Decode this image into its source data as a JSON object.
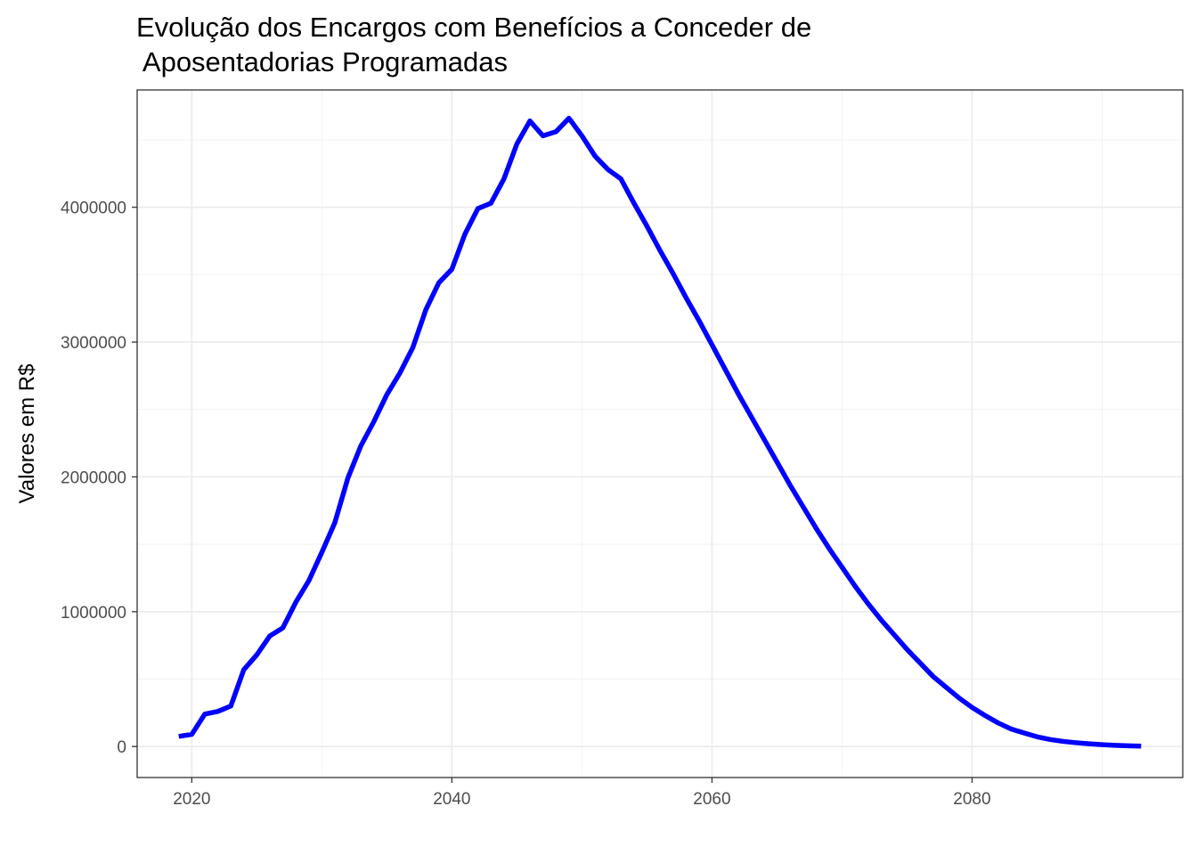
{
  "chart_data": {
    "type": "line",
    "title_lines": [
      "Evolução dos Encargos com Benefícios a Conceder de",
      " Aposentadorias Programadas"
    ],
    "xlabel": "",
    "ylabel": "Valores em R$",
    "xlim": [
      2015.8,
      2096.2
    ],
    "ylim": [
      -230000,
      4870000
    ],
    "x_ticks": [
      2020,
      2040,
      2060,
      2080
    ],
    "x_tick_labels": [
      "2020",
      "2040",
      "2060",
      "2080"
    ],
    "y_ticks": [
      0,
      1000000,
      2000000,
      3000000,
      4000000
    ],
    "y_tick_labels": [
      "0",
      "1000000",
      "2000000",
      "3000000",
      "4000000"
    ],
    "grid": true,
    "line_color": "#0000ff",
    "series": [
      {
        "x": [
          2019,
          2020,
          2021,
          2022,
          2023,
          2024,
          2025,
          2026,
          2027,
          2028,
          2029,
          2030,
          2031,
          2032,
          2033,
          2034,
          2035,
          2036,
          2037,
          2038,
          2039,
          2040,
          2041,
          2042,
          2043,
          2044,
          2045,
          2046,
          2047,
          2048,
          2049,
          2050,
          2051,
          2052,
          2053,
          2054,
          2055,
          2056,
          2057,
          2058,
          2059,
          2060,
          2061,
          2062,
          2063,
          2064,
          2065,
          2066,
          2067,
          2068,
          2069,
          2070,
          2071,
          2072,
          2073,
          2074,
          2075,
          2076,
          2077,
          2078,
          2079,
          2080,
          2081,
          2082,
          2083,
          2084,
          2085,
          2086,
          2087,
          2088,
          2089,
          2090,
          2091,
          2092,
          2093
        ],
        "values": [
          75000,
          90000,
          240000,
          260000,
          300000,
          570000,
          680000,
          820000,
          880000,
          1070000,
          1230000,
          1440000,
          1660000,
          1990000,
          2230000,
          2410000,
          2610000,
          2770000,
          2960000,
          3240000,
          3440000,
          3540000,
          3800000,
          3990000,
          4030000,
          4210000,
          4470000,
          4640000,
          4530000,
          4560000,
          4660000,
          4530000,
          4380000,
          4280000,
          4210000,
          4030000,
          3860000,
          3680000,
          3510000,
          3330000,
          3160000,
          2980000,
          2800000,
          2620000,
          2450000,
          2280000,
          2110000,
          1940000,
          1780000,
          1620000,
          1470000,
          1330000,
          1190000,
          1060000,
          940000,
          830000,
          720000,
          620000,
          520000,
          440000,
          360000,
          290000,
          230000,
          175000,
          130000,
          100000,
          72000,
          52000,
          38000,
          28000,
          20000,
          14000,
          9000,
          5000,
          3000
        ]
      }
    ]
  }
}
